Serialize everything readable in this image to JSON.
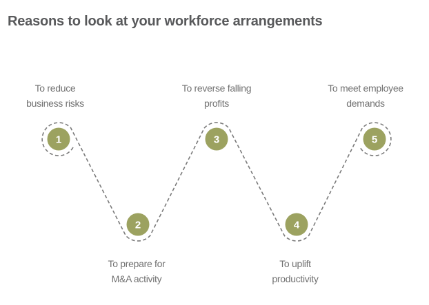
{
  "title": "Reasons to look at your workforce arrangements",
  "colors": {
    "node": "#9ca260",
    "path": "#7a7a7a",
    "text": "#717171",
    "title": "#58595b"
  },
  "steps": [
    {
      "number": "1",
      "lines": [
        "To reduce",
        "business risks"
      ]
    },
    {
      "number": "2",
      "lines": [
        "To prepare for",
        "M&A activity"
      ]
    },
    {
      "number": "3",
      "lines": [
        "To reverse falling",
        "profits"
      ]
    },
    {
      "number": "4",
      "lines": [
        "To uplift",
        "productivity"
      ]
    },
    {
      "number": "5",
      "lines": [
        "To meet employee",
        "demands"
      ]
    }
  ]
}
